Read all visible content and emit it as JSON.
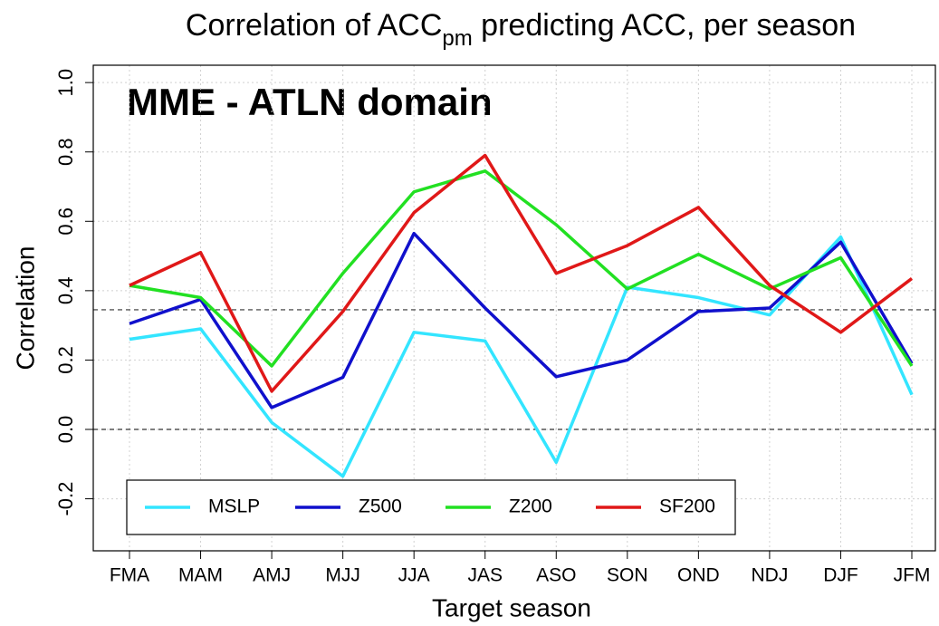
{
  "chart_data": {
    "type": "line",
    "title": [
      "Correlation of ACC",
      "pm",
      " predicting ACC, per season"
    ],
    "annotation": "MME - ATLN domain",
    "xlabel": "Target season",
    "ylabel": "Correlation",
    "categories": [
      "FMA",
      "MAM",
      "AMJ",
      "MJJ",
      "JJA",
      "JAS",
      "ASO",
      "SON",
      "OND",
      "NDJ",
      "DJF",
      "JFM"
    ],
    "series": [
      {
        "name": "MSLP",
        "color": "#33e5ff",
        "values": [
          0.26,
          0.29,
          0.02,
          -0.135,
          0.28,
          0.255,
          -0.095,
          0.41,
          0.38,
          0.33,
          0.555,
          0.1
        ]
      },
      {
        "name": "Z500",
        "color": "#1010cc",
        "values": [
          0.305,
          0.375,
          0.063,
          0.15,
          0.565,
          0.35,
          0.152,
          0.2,
          0.34,
          0.35,
          0.54,
          0.19
        ]
      },
      {
        "name": "Z200",
        "color": "#22e022",
        "values": [
          0.415,
          0.38,
          0.183,
          0.45,
          0.685,
          0.745,
          0.59,
          0.405,
          0.505,
          0.405,
          0.495,
          0.183
        ]
      },
      {
        "name": "SF200",
        "color": "#e01818",
        "values": [
          0.415,
          0.51,
          0.11,
          0.34,
          0.625,
          0.79,
          0.45,
          0.53,
          0.64,
          0.415,
          0.28,
          0.435
        ]
      }
    ],
    "hlines": [
      0,
      0.345
    ],
    "ylim": [
      -0.35,
      1.05
    ],
    "yticks": [
      -0.2,
      {
        "value": 0,
        "label": "0.0"
      },
      0.2,
      0.4,
      0.6,
      0.8,
      {
        "value": 1,
        "label": "1.0"
      }
    ],
    "grid": true,
    "legend": "bottom left"
  }
}
